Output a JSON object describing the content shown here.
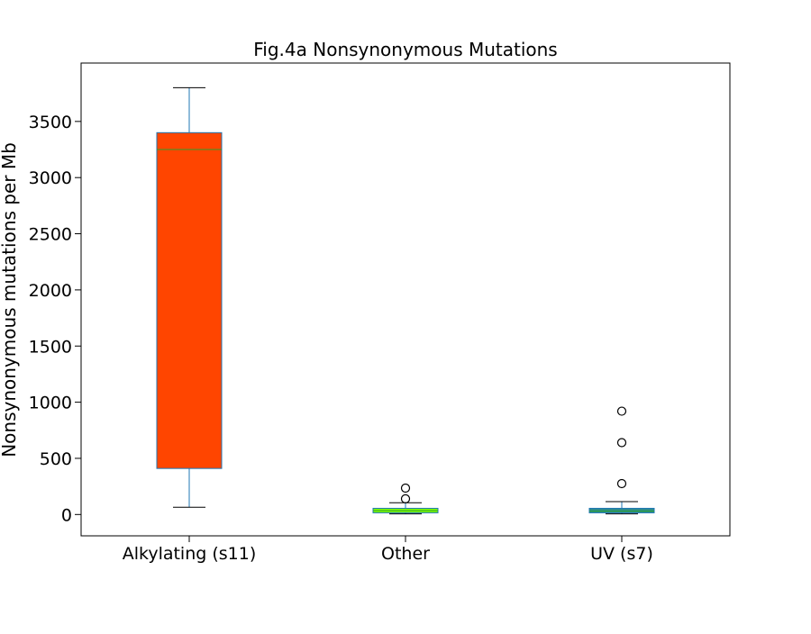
{
  "chart_data": {
    "type": "box",
    "title": "Fig.4a Nonsynonymous Mutations",
    "xlabel": "",
    "ylabel": "Nonsynonymous mutations per Mb",
    "categories": [
      "Alkylating (s11)",
      "Other",
      "UV (s7)"
    ],
    "ylim": [
      -190,
      4020
    ],
    "yticks": [
      0,
      500,
      1000,
      1500,
      2000,
      2500,
      3000,
      3500
    ],
    "grid": false,
    "series": [
      {
        "category": "Alkylating (s11)",
        "whisker_low": 65,
        "q1": 410,
        "median": 3250,
        "q3": 3400,
        "whisker_high": 3800,
        "outliers": [],
        "fill": "#ff4500"
      },
      {
        "category": "Other",
        "whisker_low": 5,
        "q1": 15,
        "median": 35,
        "q3": 55,
        "whisker_high": 105,
        "outliers": [
          140,
          235
        ],
        "fill": "#7fff00"
      },
      {
        "category": "UV (s7)",
        "whisker_low": 5,
        "q1": 15,
        "median": 30,
        "q3": 55,
        "whisker_high": 115,
        "outliers": [
          275,
          640,
          920
        ],
        "fill": "#2e8b8b"
      }
    ],
    "colors": {
      "box_edge": "#1f77b4",
      "median_line": "#2ca02c",
      "whisker": "#1f77b4",
      "cap": "#000000",
      "outlier_edge": "#000000"
    }
  }
}
